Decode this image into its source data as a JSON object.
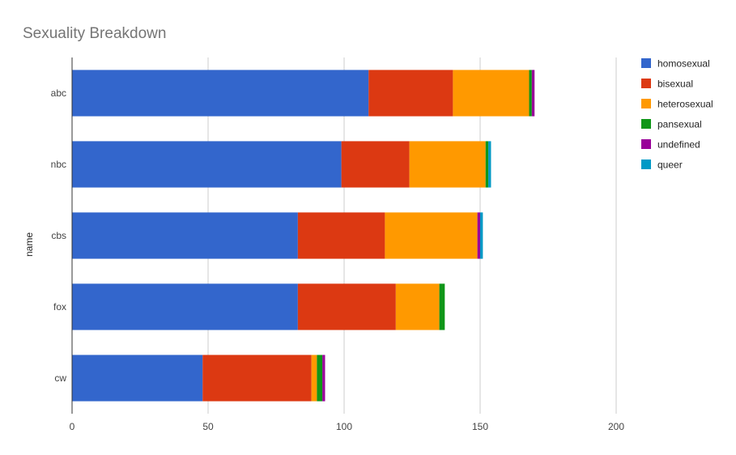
{
  "chart_data": {
    "type": "bar",
    "orientation": "horizontal",
    "stacked": true,
    "title": "Sexuality Breakdown",
    "ylabel": "name",
    "xlabel": "",
    "categories": [
      "abc",
      "nbc",
      "cbs",
      "fox",
      "cw"
    ],
    "xlim": [
      0,
      200
    ],
    "xticks": [
      0,
      50,
      100,
      150,
      200
    ],
    "grid": true,
    "legend_position": "right",
    "series": [
      {
        "name": "homosexual",
        "color": "#3366cc",
        "values": [
          109,
          99,
          83,
          83,
          48
        ]
      },
      {
        "name": "bisexual",
        "color": "#dc3912",
        "values": [
          31,
          25,
          32,
          36,
          40
        ]
      },
      {
        "name": "heterosexual",
        "color": "#ff9900",
        "values": [
          28,
          28,
          34,
          16,
          2
        ]
      },
      {
        "name": "pansexual",
        "color": "#109618",
        "values": [
          1,
          1,
          0,
          2,
          2
        ]
      },
      {
        "name": "undefined",
        "color": "#990099",
        "values": [
          1,
          0,
          1,
          0,
          1
        ]
      },
      {
        "name": "queer",
        "color": "#0099c6",
        "values": [
          0,
          1,
          1,
          0,
          0
        ]
      }
    ]
  }
}
